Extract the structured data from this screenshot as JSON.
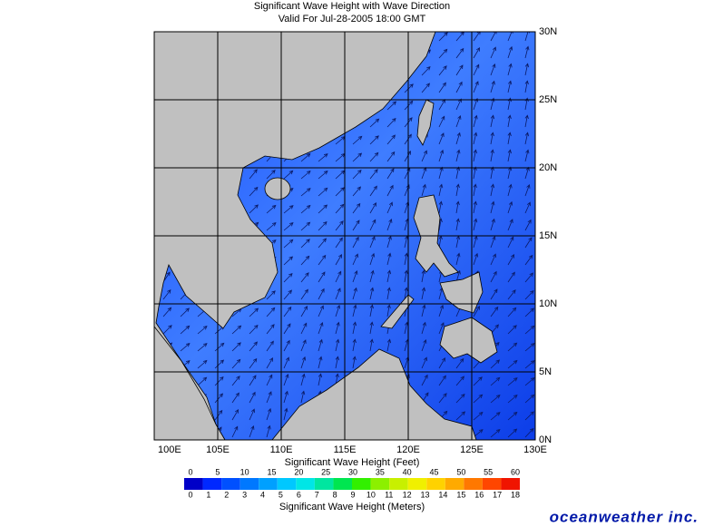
{
  "header": {
    "title": "Significant Wave Height with Wave Direction",
    "subtitle": "Valid For Jul-28-2005 18:00 GMT"
  },
  "map": {
    "lon_labels": [
      "100E",
      "105E",
      "110E",
      "115E",
      "120E",
      "125E",
      "130E"
    ],
    "lat_labels": [
      "0N",
      "5N",
      "10N",
      "15N",
      "20N",
      "25N",
      "30N"
    ]
  },
  "legend": {
    "feet_title": "Significant Wave Height (Feet)",
    "feet_labels": [
      "0",
      "5",
      "10",
      "15",
      "20",
      "25",
      "30",
      "35",
      "40",
      "45",
      "50",
      "55",
      "60"
    ],
    "meter_labels": [
      "0",
      "1",
      "2",
      "3",
      "4",
      "5",
      "6",
      "7",
      "8",
      "9",
      "10",
      "11",
      "12",
      "13",
      "14",
      "15",
      "16",
      "17",
      "18"
    ],
    "meter_title": "Significant Wave Height (Meters)"
  },
  "brand": "oceanweather inc."
}
